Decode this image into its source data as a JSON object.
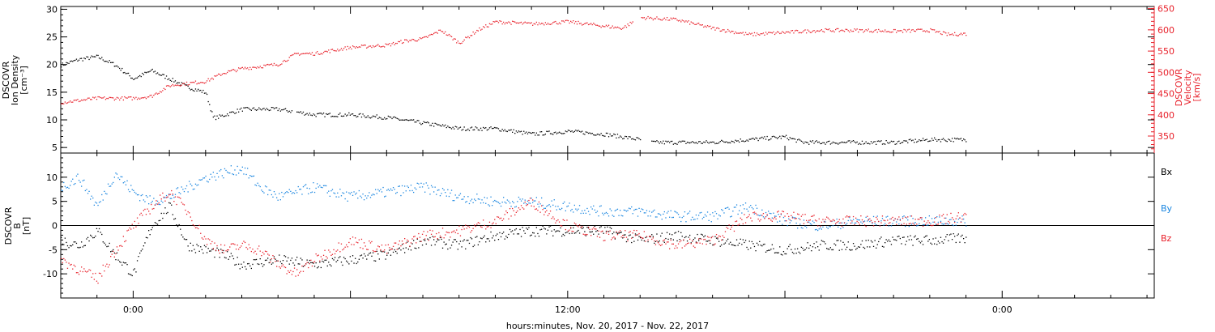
{
  "colors": {
    "black": "#000000",
    "red": "#e8202a",
    "blue": "#1a86e0"
  },
  "xaxis": {
    "label": "hours:minutes, Nov. 20, 2017 - Nov. 22, 2017",
    "ticks": [
      {
        "t": 0,
        "label": "0:00"
      },
      {
        "t": 12,
        "label": "12:00"
      },
      {
        "t": 24,
        "label": "0:00"
      }
    ],
    "range_hours": [
      -2,
      28.2
    ]
  },
  "chart_data": [
    {
      "type": "scatter",
      "panel": "top",
      "left_axis": {
        "label_lines": [
          "DSCOVR",
          "Ion Density",
          "[cm⁻³]"
        ],
        "ticks": [
          "5",
          "10",
          "15",
          "20",
          "25",
          "30"
        ],
        "ylim": [
          4,
          30.5
        ]
      },
      "right_axis": {
        "label_lines": [
          "DSCOVR",
          "Velocity",
          "[km/s]"
        ],
        "ticks": [
          "350",
          "400",
          "450",
          "500",
          "550",
          "600",
          "650"
        ],
        "ylim": [
          310,
          655
        ]
      },
      "series": [
        {
          "name": "",
          "axis": "left",
          "color": "black",
          "gaps": [
            [
              4.4,
              4.5
            ],
            [
              14.0,
              14.3
            ]
          ],
          "x": [
            -2,
            -1.5,
            -1,
            -0.5,
            0,
            0.5,
            1,
            1.5,
            2,
            2.2,
            2.3,
            3,
            4,
            5,
            6,
            7,
            8,
            9,
            10,
            11,
            12,
            13,
            14,
            14.3,
            15,
            16,
            17,
            18,
            18.5,
            19,
            20,
            21,
            22,
            23
          ],
          "y": [
            20,
            21,
            21.5,
            20,
            17.5,
            19,
            17.5,
            16,
            15,
            10.5,
            10.5,
            12,
            12,
            11,
            11,
            10.5,
            9.5,
            8.5,
            8.5,
            7.5,
            8,
            7.5,
            6.5,
            6,
            6,
            6,
            6.5,
            7,
            6,
            6,
            6,
            6,
            6.5,
            6.5
          ]
        },
        {
          "name": "",
          "axis": "right",
          "color": "red",
          "gaps": [
            [
              13.8,
              14.0
            ]
          ],
          "x": [
            -2,
            -1,
            0,
            0.5,
            1,
            1.5,
            2,
            2.5,
            3,
            3.5,
            4,
            4.5,
            5,
            6,
            7,
            7.5,
            8,
            8.5,
            9,
            9.5,
            10,
            11,
            12,
            12.5,
            13,
            13.5,
            14,
            15,
            16,
            17,
            18,
            19,
            20,
            21,
            22,
            22.5,
            23
          ],
          "y": [
            430,
            440,
            440,
            445,
            470,
            475,
            480,
            500,
            510,
            515,
            520,
            545,
            545,
            560,
            565,
            575,
            580,
            600,
            570,
            600,
            620,
            615,
            620,
            615,
            610,
            605,
            630,
            625,
            605,
            590,
            595,
            600,
            600,
            598,
            600,
            590,
            592
          ]
        }
      ]
    },
    {
      "type": "scatter",
      "panel": "bottom",
      "left_axis": {
        "label_lines": [
          "DSCOVR",
          "B",
          "[nT]"
        ],
        "ticks": [
          "-10",
          "-5",
          "0",
          "5",
          "10"
        ],
        "ylim": [
          -15,
          15
        ]
      },
      "zero_line": true,
      "legend": [
        "Bx",
        "By",
        "Bz"
      ],
      "series": [
        {
          "name": "Bx",
          "color": "black",
          "x": [
            -2,
            -1.5,
            -1,
            -0.5,
            0,
            0.5,
            1,
            1.5,
            2,
            2.5,
            3,
            4,
            5,
            6,
            7,
            8,
            9,
            10,
            11,
            12,
            13,
            14,
            15,
            16,
            17,
            18,
            19,
            20,
            21,
            22,
            23
          ],
          "y": [
            -3,
            -4,
            -1,
            -6,
            -10,
            0,
            4,
            -4,
            -5,
            -6,
            -8,
            -7,
            -8,
            -7,
            -6,
            -3,
            -4,
            -2,
            -1,
            -1,
            -1,
            -3,
            -2,
            -3,
            -4,
            -5,
            -4,
            -4,
            -3,
            -3,
            -2.5
          ]
        },
        {
          "name": "By",
          "color": "blue",
          "x": [
            -2,
            -1.5,
            -1,
            -0.5,
            0,
            0.5,
            1,
            1.5,
            2,
            2.5,
            3,
            3.5,
            4,
            5,
            6,
            7,
            8,
            9,
            10,
            11,
            12,
            13,
            14,
            15,
            16,
            17,
            18,
            19,
            20,
            21,
            22,
            23
          ],
          "y": [
            8,
            10,
            4,
            11,
            7,
            5,
            6,
            8,
            10,
            11,
            12,
            8,
            6,
            8,
            6,
            7,
            8,
            6,
            5,
            5,
            4,
            3,
            3,
            2,
            2,
            4,
            1,
            0,
            1,
            1,
            1,
            1
          ]
        },
        {
          "name": "Bz",
          "color": "red",
          "x": [
            -2,
            -1.5,
            -1,
            -0.5,
            0,
            0.5,
            1,
            1.5,
            2,
            2.5,
            3,
            3.5,
            4,
            4.5,
            5,
            6,
            7,
            8,
            9,
            10,
            11,
            12,
            13,
            14,
            15,
            16,
            17,
            18,
            19,
            20,
            21,
            22,
            23
          ],
          "y": [
            -7,
            -9,
            -11,
            -5,
            0,
            4,
            7,
            3,
            -3,
            -5,
            -4,
            -5,
            -8,
            -10,
            -7,
            -3,
            -5,
            -2,
            -1,
            1,
            5,
            0,
            -2,
            -2,
            -4,
            -3,
            2,
            2,
            1,
            1,
            1,
            1,
            2
          ]
        }
      ]
    }
  ]
}
